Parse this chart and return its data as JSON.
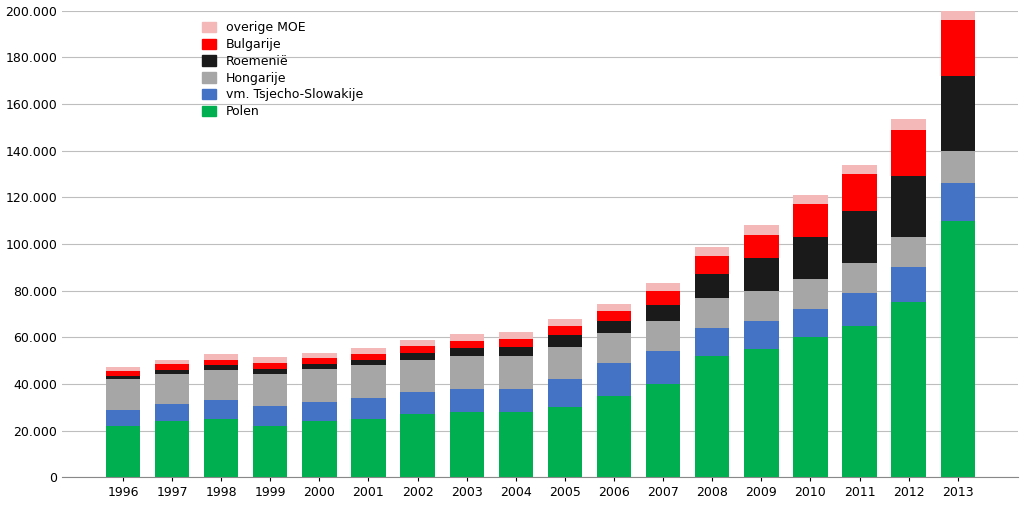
{
  "years": [
    1996,
    1997,
    1998,
    1999,
    2000,
    2001,
    2002,
    2003,
    2004,
    2005,
    2006,
    2007,
    2008,
    2009,
    2010,
    2011,
    2012,
    2013
  ],
  "Polen": [
    22000,
    24000,
    25000,
    22000,
    24000,
    25000,
    27000,
    28000,
    28000,
    30000,
    35000,
    40000,
    52000,
    55000,
    60000,
    65000,
    75000,
    110000
  ],
  "vm_Tsjecho_Slowakije": [
    7000,
    7500,
    8000,
    8500,
    8500,
    9000,
    9500,
    10000,
    10000,
    12000,
    14000,
    14000,
    12000,
    12000,
    12000,
    14000,
    15000,
    16000
  ],
  "Hongarije": [
    13000,
    13000,
    13000,
    14000,
    14000,
    14000,
    14000,
    14000,
    14000,
    14000,
    13000,
    13000,
    13000,
    13000,
    13000,
    13000,
    13000,
    14000
  ],
  "Roemenie": [
    1500,
    1500,
    2000,
    2000,
    2000,
    2500,
    3000,
    3500,
    4000,
    5000,
    5000,
    7000,
    10000,
    14000,
    18000,
    22000,
    26000,
    32000
  ],
  "Bulgarije": [
    2000,
    2500,
    2500,
    2500,
    2500,
    2500,
    3000,
    3000,
    3500,
    4000,
    4500,
    6000,
    8000,
    10000,
    14000,
    16000,
    20000,
    24000
  ],
  "overige_MOE": [
    2000,
    2000,
    2500,
    2500,
    2500,
    2500,
    2500,
    3000,
    3000,
    3000,
    3000,
    3500,
    3500,
    4000,
    4000,
    4000,
    4500,
    5000
  ],
  "colors": {
    "Polen": "#00b050",
    "vm_Tsjecho_Slowakije": "#4472c4",
    "Hongarije": "#a6a6a6",
    "Roemenie": "#1a1a1a",
    "Bulgarije": "#ff0000",
    "overige_MOE": "#f4b8b8"
  },
  "ylim": [
    0,
    200000
  ],
  "yticks": [
    0,
    20000,
    40000,
    60000,
    80000,
    100000,
    120000,
    140000,
    160000,
    180000,
    200000
  ],
  "background_color": "#ffffff",
  "grid_color": "#bebebe"
}
